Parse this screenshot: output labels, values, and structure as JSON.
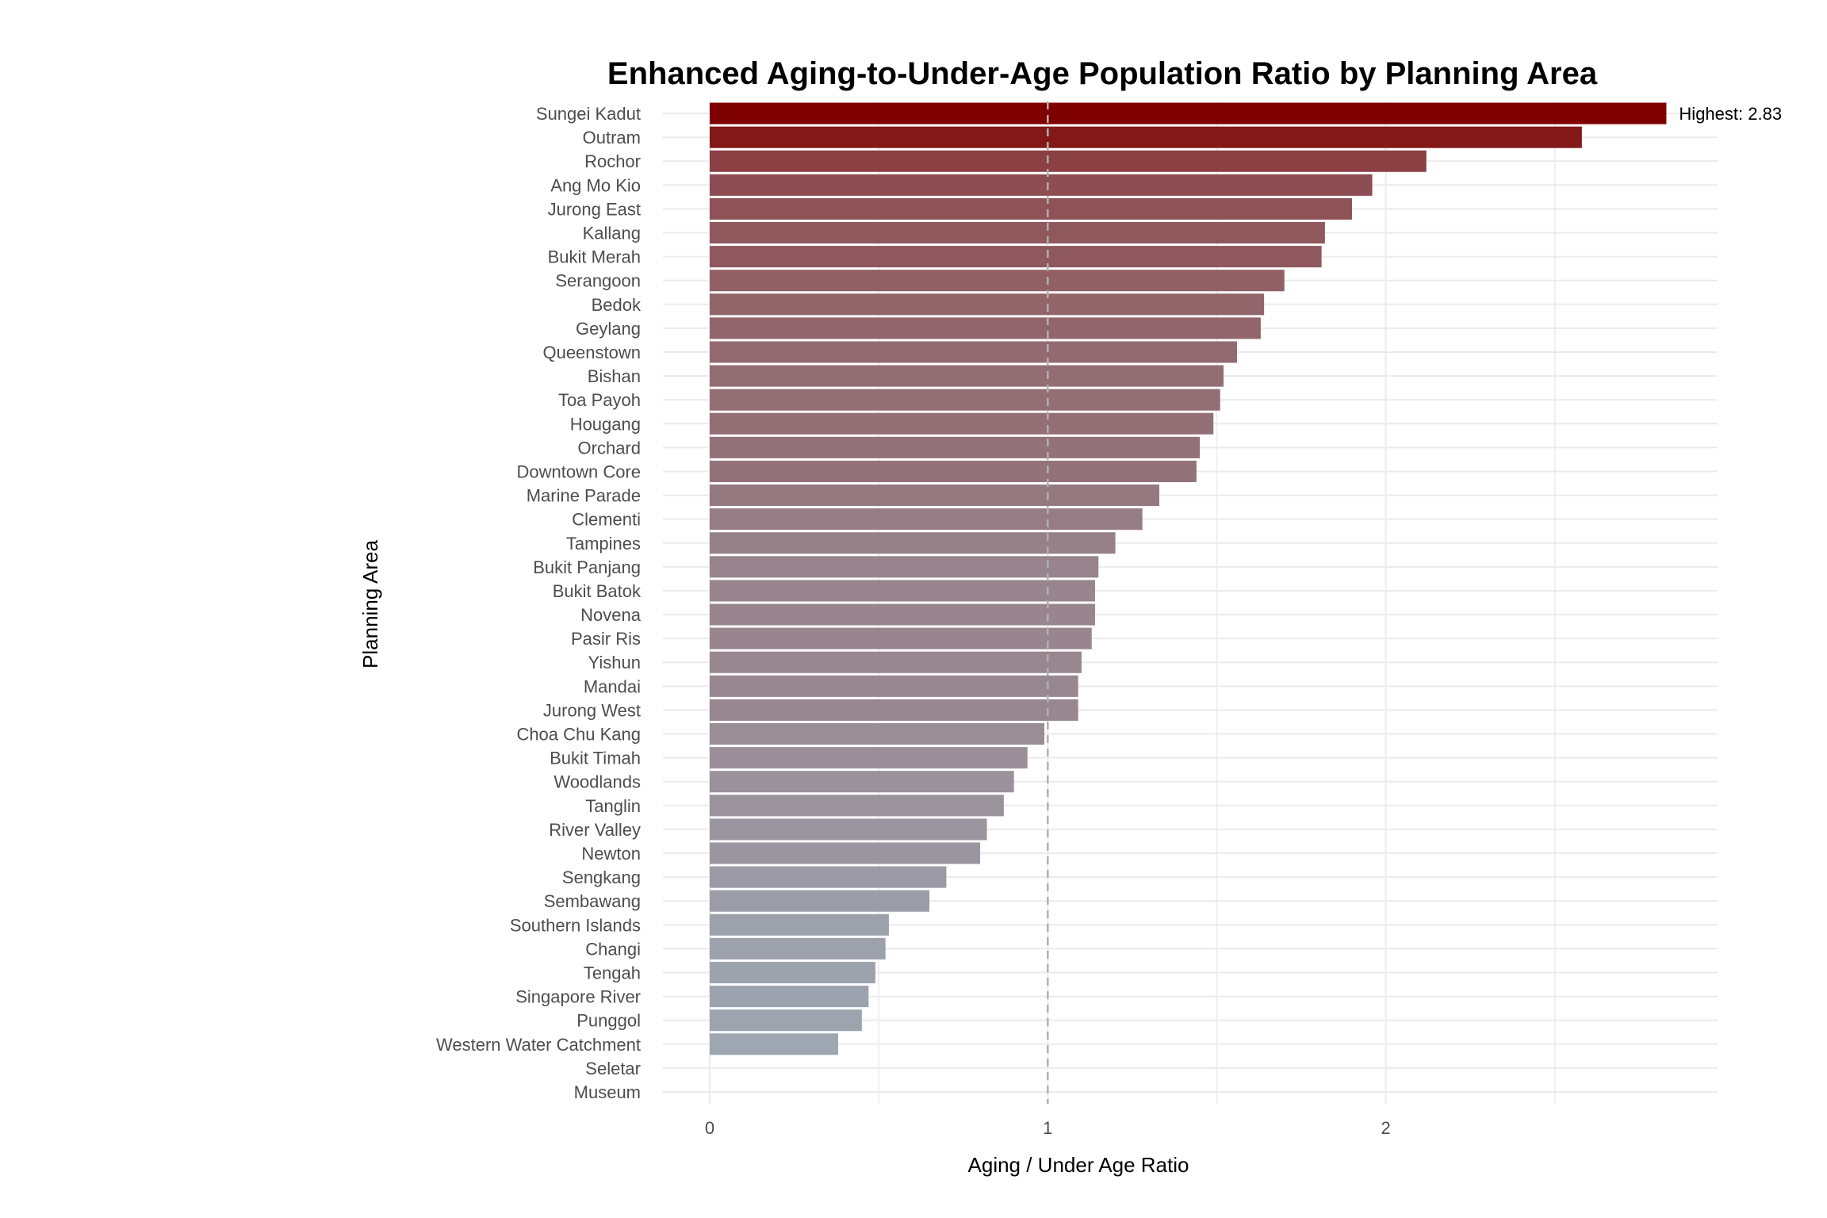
{
  "chart_data": {
    "type": "bar",
    "orientation": "horizontal",
    "title": "Enhanced Aging-to-Under-Age Population Ratio by Planning Area",
    "xlabel": "Aging / Under Age Ratio",
    "ylabel": "Planning Area",
    "xlim": [
      0,
      2.98
    ],
    "xticks": [
      0,
      1,
      2
    ],
    "reference_line": 1,
    "grid": true,
    "color_low": "#9fadb8",
    "color_high": "#7f0000",
    "annotation": "Highest: 2.83",
    "categories": [
      "Sungei Kadut",
      "Outram",
      "Rochor",
      "Ang Mo Kio",
      "Jurong East",
      "Kallang",
      "Bukit Merah",
      "Serangoon",
      "Bedok",
      "Geylang",
      "Queenstown",
      "Bishan",
      "Toa Payoh",
      "Hougang",
      "Orchard",
      "Downtown Core",
      "Marine Parade",
      "Clementi",
      "Tampines",
      "Bukit Panjang",
      "Bukit Batok",
      "Novena",
      "Pasir Ris",
      "Yishun",
      "Mandai",
      "Jurong West",
      "Choa Chu Kang",
      "Bukit Timah",
      "Woodlands",
      "Tanglin",
      "River Valley",
      "Newton",
      "Sengkang",
      "Sembawang",
      "Southern Islands",
      "Changi",
      "Tengah",
      "Singapore River",
      "Punggol",
      "Western Water Catchment",
      "Seletar",
      "Museum"
    ],
    "values": [
      2.83,
      2.58,
      2.12,
      1.96,
      1.9,
      1.82,
      1.81,
      1.7,
      1.64,
      1.63,
      1.56,
      1.52,
      1.51,
      1.49,
      1.45,
      1.44,
      1.33,
      1.28,
      1.2,
      1.15,
      1.14,
      1.14,
      1.13,
      1.1,
      1.09,
      1.09,
      0.99,
      0.94,
      0.9,
      0.87,
      0.82,
      0.8,
      0.7,
      0.65,
      0.53,
      0.52,
      0.49,
      0.47,
      0.45,
      0.38,
      0,
      0
    ]
  }
}
